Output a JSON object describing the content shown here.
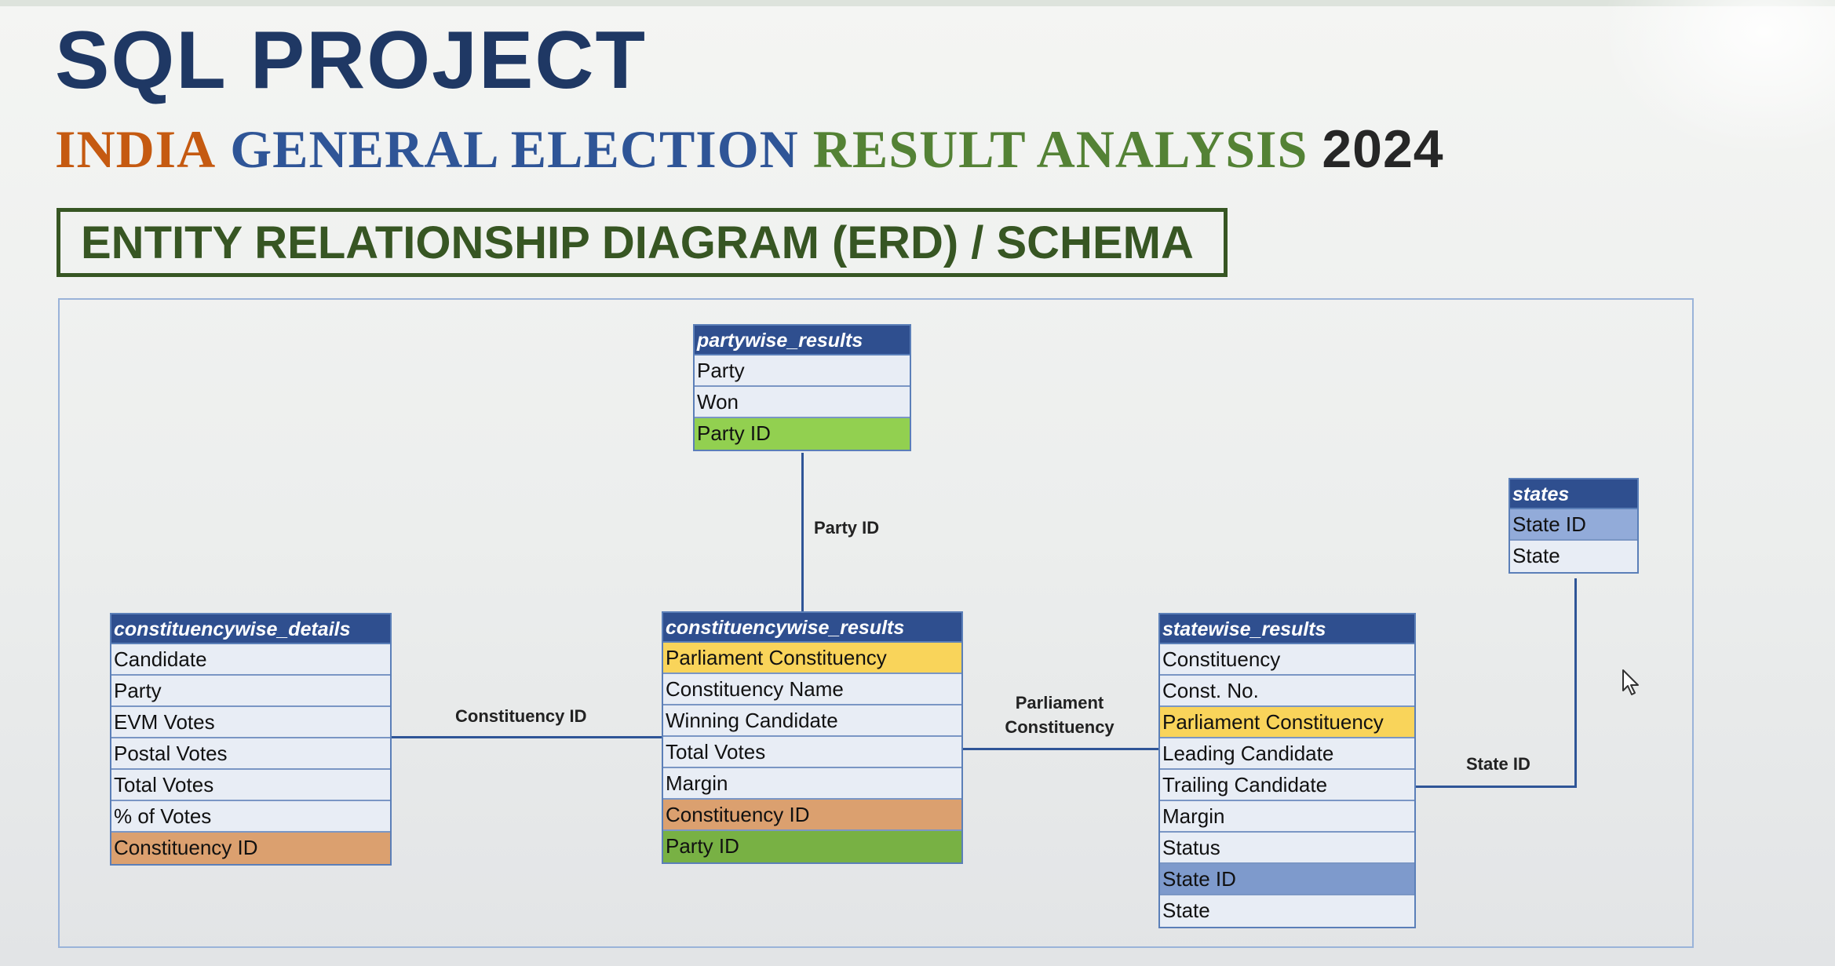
{
  "title": "SQL PROJECT",
  "subtitle": {
    "word1": "INDIA",
    "word2": "GENERAL ELECTION",
    "word3": "RESULT ANALYSIS",
    "word4": "2024"
  },
  "section_heading": "ENTITY RELATIONSHIP DIAGRAM (ERD) / SCHEMA",
  "colors": {
    "title": "#1f3864",
    "india": "#c55a11",
    "general_election": "#2f5597",
    "result_analysis": "#548235",
    "year": "#262626",
    "heading": "#375623",
    "table_header": "#2f4f8f",
    "parliament_constituency_key": "#f9d45a",
    "constituency_id_key": "#dba06f",
    "party_id_key": "#78b144",
    "state_id_key": "#92abd9"
  },
  "entities": {
    "partywise_results": {
      "name": "partywise_results",
      "fields": [
        "Party",
        "Won",
        "Party ID"
      ]
    },
    "states": {
      "name": "states",
      "fields": [
        "State ID",
        "State"
      ]
    },
    "constituencywise_details": {
      "name": "constituencywise_details",
      "fields": [
        "Candidate",
        "Party",
        "EVM Votes",
        "Postal Votes",
        "Total Votes",
        "% of Votes",
        "Constituency ID"
      ]
    },
    "constituencywise_results": {
      "name": "constituencywise_results",
      "fields": [
        "Parliament Constituency",
        "Constituency Name",
        "Winning Candidate",
        "Total Votes",
        "Margin",
        "Constituency ID",
        "Party ID"
      ]
    },
    "statewise_results": {
      "name": "statewise_results",
      "fields": [
        "Constituency",
        "Const. No.",
        "Parliament Constituency",
        "Leading Candidate",
        "Trailing Candidate",
        "Margin",
        "Status",
        "State ID",
        "State"
      ]
    }
  },
  "relationships": {
    "party": {
      "label": "Party ID",
      "from": "partywise_results",
      "to": "constituencywise_results"
    },
    "constituency": {
      "label": "Constituency ID",
      "from": "constituencywise_details",
      "to": "constituencywise_results"
    },
    "parliament": {
      "label_line1": "Parliament",
      "label_line2": "Constituency",
      "from": "constituencywise_results",
      "to": "statewise_results"
    },
    "state": {
      "label": "State ID",
      "from": "statewise_results",
      "to": "states"
    }
  }
}
